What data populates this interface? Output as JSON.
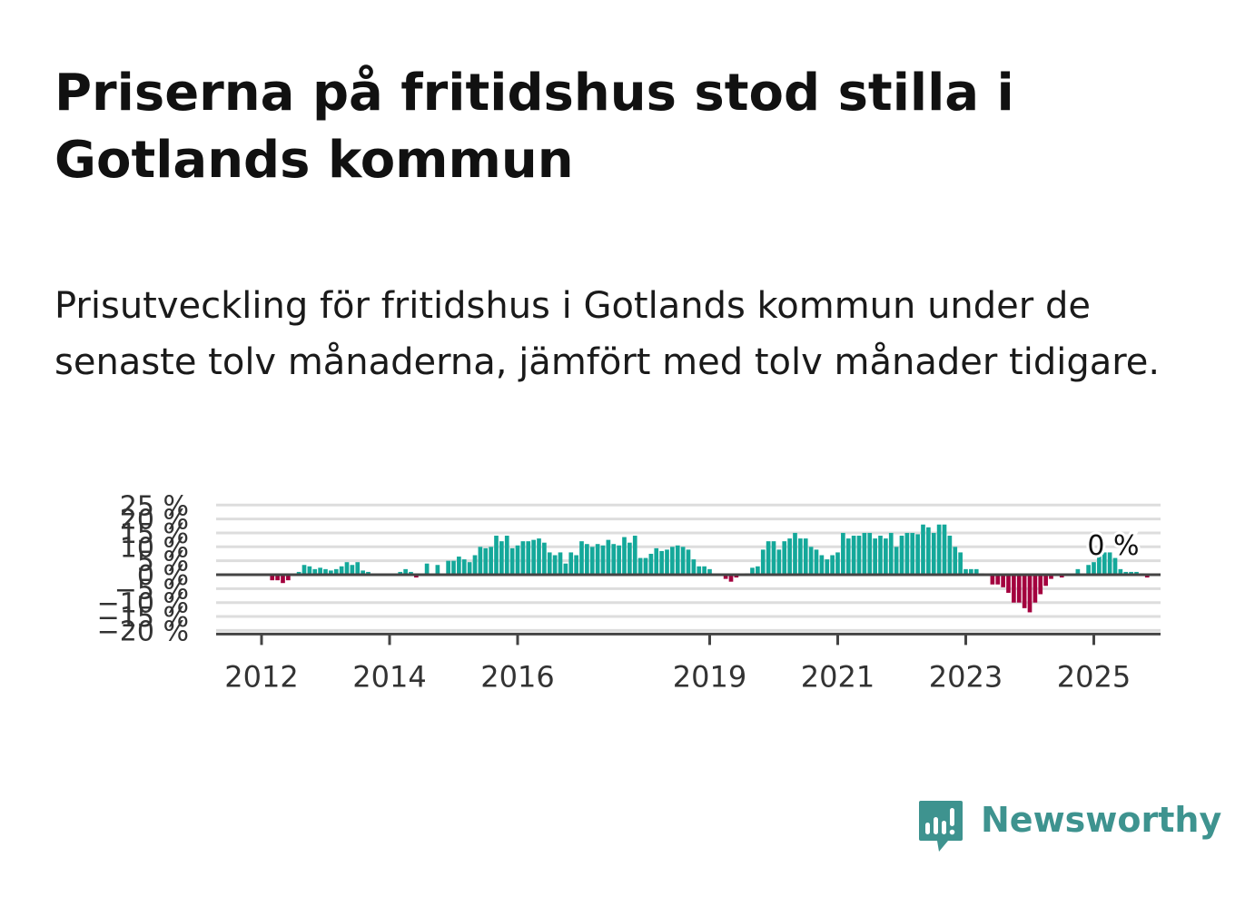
{
  "title": "Priserna på fritidshus stod stilla i Gotlands kommun",
  "subtitle": "Prisutveckling för fritidshus i Gotlands kommun under de senaste tolv månaderna, jämfört med tolv månader tidigare.",
  "brand": {
    "name": "Newsworthy",
    "color": "#3e938f",
    "icon": "newsworthy-bar-chart-icon"
  },
  "chart_data": {
    "type": "bar",
    "title": "Priserna på fritidshus stod stilla i Gotlands kommun",
    "xlabel": "",
    "ylabel": "",
    "unit": "%",
    "ylim": [
      -20,
      25
    ],
    "yticks": [
      -20,
      -15,
      -10,
      -5,
      0,
      5,
      10,
      15,
      20,
      25
    ],
    "ytick_labels": [
      "−20 %",
      "−15 %",
      "−10 %",
      "−5 %",
      "0 %",
      "5 %",
      "10 %",
      "15 %",
      "20 %",
      "25 %"
    ],
    "xticks": [
      2012,
      2014,
      2016,
      2019,
      2021,
      2023,
      2025
    ],
    "xtick_labels": [
      "2012",
      "2014",
      "2016",
      "2019",
      "2021",
      "2023",
      "2025"
    ],
    "colors": {
      "positive": "#14a89a",
      "negative": "#a3003e",
      "grid": "#dddddd",
      "axis": "#444444"
    },
    "grid": true,
    "end_label": "0 %",
    "series": [
      {
        "start": "2011-10",
        "frequency": "monthly",
        "values": [
          0,
          0,
          0,
          0,
          0,
          -2,
          -2,
          -3,
          -2,
          0,
          1,
          3.5,
          3,
          2,
          2.5,
          2,
          1.5,
          2,
          3,
          4.5,
          3.5,
          4.5,
          1.5,
          1,
          0,
          0,
          0,
          0,
          0,
          1,
          2,
          1,
          -1,
          0,
          4,
          0,
          3.5,
          0,
          5,
          5,
          6.5,
          5.5,
          4.5,
          7,
          10,
          9.5,
          10,
          14,
          12,
          14,
          9.5,
          10.5,
          12,
          12,
          12.5,
          13,
          11.5,
          8,
          7,
          8,
          4,
          8,
          7,
          12,
          11,
          10,
          11,
          10.5,
          12.5,
          11,
          10.5,
          13.5,
          11.5,
          14,
          6,
          6,
          7.5,
          9.5,
          8.5,
          9,
          10,
          10.5,
          10,
          9,
          5.5,
          3,
          3,
          2,
          0,
          0,
          -1.5,
          -2.5,
          -1,
          0,
          0.5,
          2.5,
          3,
          9,
          12,
          12,
          9,
          12,
          13,
          15,
          13,
          13,
          10,
          9,
          7,
          5.5,
          7,
          8,
          15,
          13,
          14,
          14,
          15,
          15,
          13,
          14,
          13,
          15,
          10,
          14,
          15,
          15,
          14.5,
          18,
          17,
          15,
          18,
          18,
          14,
          10,
          8,
          2,
          2,
          2,
          0.5,
          0,
          -3.5,
          -3.5,
          -4.5,
          -6.5,
          -10,
          -10,
          -12,
          -13.5,
          -10,
          -7,
          -4,
          -1.5,
          0,
          -1,
          0,
          0,
          2,
          0,
          3.5,
          4.5,
          8,
          8,
          8,
          6,
          2,
          1,
          1,
          1,
          0.5,
          -1,
          0,
          0
        ]
      }
    ]
  }
}
